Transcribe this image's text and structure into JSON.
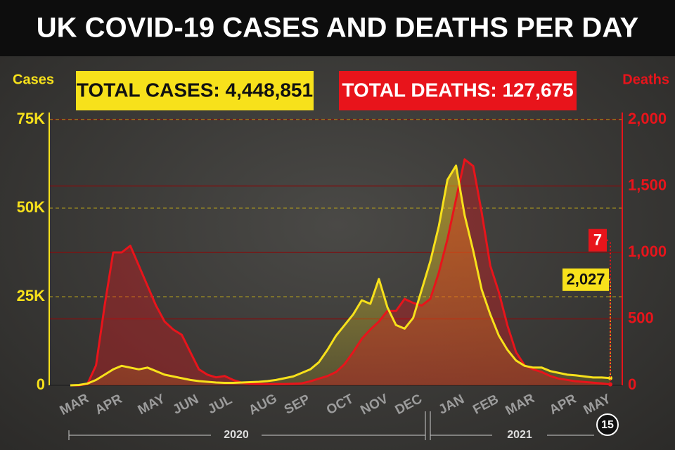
{
  "chart_data": {
    "type": "line",
    "title": "UK COVID-19 CASES AND DEATHS PER DAY",
    "annotations": [
      "TOTAL CASES: 4,448,851",
      "TOTAL DEATHS: 127,675"
    ],
    "year_labels": [
      "2020",
      "2021"
    ],
    "date_badge": "15",
    "categories": [
      "MAR",
      null,
      null,
      null,
      "APR",
      null,
      null,
      null,
      null,
      "MAY",
      null,
      null,
      null,
      "JUN",
      null,
      null,
      null,
      "JUL",
      null,
      null,
      null,
      null,
      "AUG",
      null,
      null,
      null,
      "SEP",
      null,
      null,
      null,
      null,
      "OCT",
      null,
      null,
      null,
      "NOV",
      null,
      null,
      null,
      "DEC",
      null,
      null,
      null,
      null,
      "JAN",
      null,
      null,
      null,
      "FEB",
      null,
      null,
      null,
      "MAR",
      null,
      null,
      null,
      null,
      "APR",
      null,
      null,
      null,
      "MAY",
      null,
      null
    ],
    "series": [
      {
        "name": "Cases",
        "color": "#f7e11b",
        "axis": "y",
        "values": [
          0,
          100,
          500,
          1500,
          3000,
          4500,
          5500,
          5000,
          4500,
          5000,
          4000,
          3000,
          2500,
          2000,
          1500,
          1200,
          1000,
          800,
          700,
          700,
          800,
          900,
          1000,
          1200,
          1500,
          2000,
          2500,
          3500,
          4500,
          6500,
          10000,
          14000,
          17000,
          20000,
          24000,
          23000,
          30000,
          22000,
          17000,
          16000,
          19000,
          27000,
          35000,
          45000,
          58000,
          62000,
          48000,
          38000,
          27000,
          20000,
          14000,
          10000,
          7000,
          5500,
          5000,
          5000,
          4000,
          3500,
          3000,
          2800,
          2500,
          2200,
          2200,
          2027
        ],
        "value_labels": [
          null,
          null,
          null,
          null,
          null,
          null,
          null,
          null,
          null,
          null,
          null,
          null,
          null,
          null,
          null,
          null,
          null,
          null,
          null,
          null,
          null,
          null,
          null,
          null,
          null,
          null,
          null,
          null,
          null,
          null,
          null,
          null,
          null,
          null,
          null,
          null,
          null,
          null,
          null,
          null,
          null,
          null,
          null,
          null,
          null,
          null,
          null,
          null,
          null,
          null,
          null,
          null,
          null,
          null,
          null,
          null,
          null,
          null,
          null,
          null,
          null,
          null,
          null,
          "2,027"
        ]
      },
      {
        "name": "Deaths",
        "color": "#e8141b",
        "axis": "y2",
        "values": [
          0,
          0,
          10,
          150,
          600,
          1000,
          1000,
          1050,
          900,
          750,
          600,
          480,
          420,
          380,
          250,
          120,
          80,
          60,
          70,
          40,
          20,
          12,
          10,
          10,
          10,
          10,
          12,
          15,
          30,
          50,
          70,
          100,
          160,
          250,
          350,
          420,
          480,
          560,
          560,
          650,
          620,
          600,
          650,
          850,
          1100,
          1400,
          1700,
          1650,
          1300,
          900,
          700,
          450,
          250,
          150,
          120,
          100,
          70,
          50,
          40,
          30,
          25,
          20,
          15,
          7
        ],
        "value_labels": [
          null,
          null,
          null,
          null,
          null,
          null,
          null,
          null,
          null,
          null,
          null,
          null,
          null,
          null,
          null,
          null,
          null,
          null,
          null,
          null,
          null,
          null,
          null,
          null,
          null,
          null,
          null,
          null,
          null,
          null,
          null,
          null,
          null,
          null,
          null,
          null,
          null,
          null,
          null,
          null,
          null,
          null,
          null,
          null,
          null,
          null,
          null,
          null,
          null,
          null,
          null,
          null,
          null,
          null,
          null,
          null,
          null,
          null,
          null,
          null,
          null,
          null,
          null,
          "7"
        ]
      }
    ],
    "ylim": [
      0,
      75000
    ],
    "yticks": [
      0,
      {
        "value": 25000,
        "label": "25K"
      },
      {
        "value": 50000,
        "label": "50K"
      },
      {
        "value": 75000,
        "label": "75K"
      }
    ],
    "y2lim": [
      0,
      2000
    ],
    "y2ticks": [
      0,
      500,
      {
        "value": 1000,
        "label": "1,000"
      },
      {
        "value": 1500,
        "label": "1,500"
      },
      {
        "value": 2000,
        "label": "2,000"
      }
    ],
    "grid": true
  }
}
